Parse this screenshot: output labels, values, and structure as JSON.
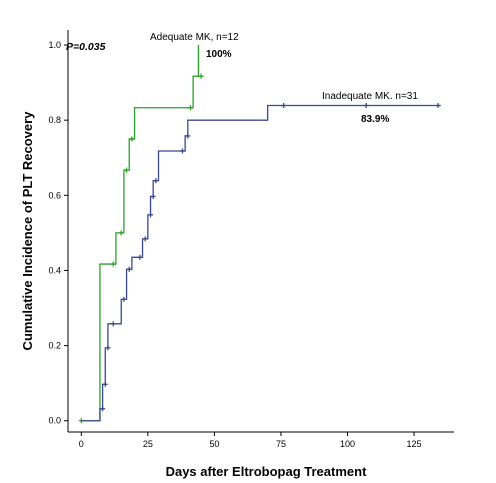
{
  "chart_data": {
    "type": "line",
    "title": "",
    "xlabel": "Days after Eltrobopag Treatment",
    "ylabel": "Cumulative Incidence of PLT Recovery",
    "xlim": [
      -5,
      140
    ],
    "ylim": [
      -0.03,
      1.04
    ],
    "xticks": [
      0,
      25,
      50,
      75,
      100,
      125
    ],
    "xtick_labels": [
      "0",
      "25",
      "50",
      "75",
      "100",
      "125"
    ],
    "yticks": [
      0.0,
      0.2,
      0.4,
      0.6,
      0.8,
      1.0
    ],
    "ytick_labels": [
      "0.0",
      "0.2",
      "0.4",
      "0.6",
      "0.8",
      "1.0"
    ],
    "grid": false,
    "legend": "none",
    "series": [
      {
        "name": "Adequate MK, n=12",
        "color": "#2ca02c",
        "step": [
          [
            0,
            0
          ],
          [
            7,
            0.417
          ],
          [
            13,
            0.5
          ],
          [
            16,
            0.667
          ],
          [
            18,
            0.75
          ],
          [
            20,
            0.833
          ],
          [
            42,
            0.917
          ],
          [
            44,
            1.0
          ]
        ],
        "censor_points": [
          [
            0,
            0
          ],
          [
            12,
            0.417
          ],
          [
            15,
            0.5
          ],
          [
            17,
            0.667
          ],
          [
            19,
            0.75
          ],
          [
            41,
            0.833
          ],
          [
            45,
            0.917
          ]
        ]
      },
      {
        "name": "Inadequate MK. n=31",
        "color": "#3b4a8c",
        "step": [
          [
            0,
            0
          ],
          [
            7,
            0.032
          ],
          [
            8,
            0.097
          ],
          [
            9,
            0.194
          ],
          [
            10,
            0.258
          ],
          [
            15,
            0.323
          ],
          [
            17,
            0.403
          ],
          [
            19,
            0.435
          ],
          [
            23,
            0.484
          ],
          [
            25,
            0.548
          ],
          [
            26,
            0.597
          ],
          [
            27,
            0.639
          ],
          [
            29,
            0.718
          ],
          [
            39,
            0.758
          ],
          [
            40,
            0.8
          ],
          [
            70,
            0.839
          ],
          [
            135,
            0.839
          ]
        ],
        "censor_points": [
          [
            8,
            0.032
          ],
          [
            9,
            0.097
          ],
          [
            10,
            0.194
          ],
          [
            12,
            0.258
          ],
          [
            16,
            0.323
          ],
          [
            18,
            0.403
          ],
          [
            22,
            0.435
          ],
          [
            24,
            0.484
          ],
          [
            26,
            0.548
          ],
          [
            27,
            0.597
          ],
          [
            28,
            0.639
          ],
          [
            38,
            0.718
          ],
          [
            40,
            0.758
          ],
          [
            76,
            0.839
          ],
          [
            107,
            0.839
          ],
          [
            134,
            0.839
          ]
        ]
      }
    ],
    "annotations": {
      "p_value": "P=0.035",
      "adequate_label": "Adequate MK, n=12",
      "adequate_pct": "100%",
      "inadequate_label": "Inadequate MK. n=31",
      "inadequate_pct": "83.9%"
    }
  }
}
